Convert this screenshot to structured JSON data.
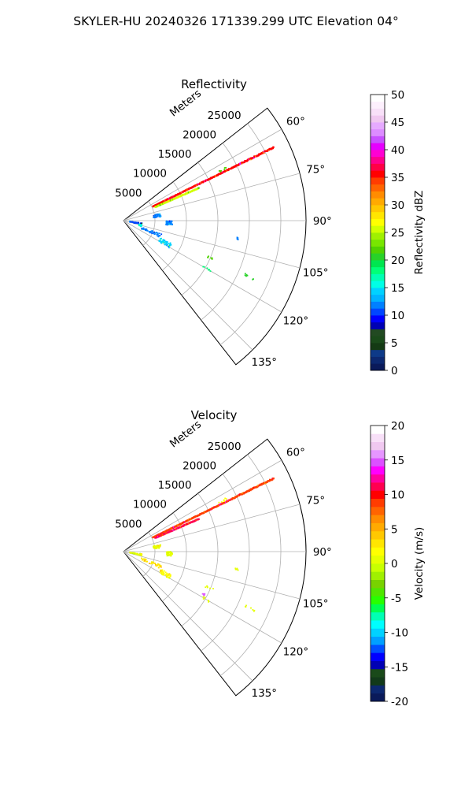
{
  "figure": {
    "title": "SKYLER-HU  20240326  171339.299 UTC Elevation 04°"
  },
  "chart_data": [
    {
      "type": "polar-sector",
      "title": "Reflectivity",
      "range_label": "Meters",
      "r_max": 29000,
      "r_ticks": [
        5000,
        10000,
        15000,
        20000,
        25000
      ],
      "theta_range_deg": [
        52,
        142
      ],
      "theta_ticks_deg": [
        60,
        75,
        90,
        105,
        120,
        135
      ],
      "grid": true,
      "colorbar": {
        "label": "Reflectivity dBZ",
        "vmin": 0,
        "vmax": 50,
        "ticks": [
          0,
          5,
          10,
          15,
          20,
          25,
          30,
          35,
          40,
          45,
          50
        ],
        "colors": [
          "#0a1a5a",
          "#0c2870",
          "#0e3a88",
          "#143a14",
          "#1a4a1a",
          "#224a22",
          "#0000b4",
          "#0000ff",
          "#0046ff",
          "#0080ff",
          "#00b4ff",
          "#00d2ff",
          "#00ffe6",
          "#00ffb4",
          "#00ff78",
          "#00e650",
          "#28d228",
          "#50d200",
          "#78e600",
          "#a0f000",
          "#d2ff00",
          "#ffff00",
          "#ffe600",
          "#ffc800",
          "#ffaa00",
          "#ff8c00",
          "#ff6400",
          "#ff3c00",
          "#ff0000",
          "#ff0046",
          "#ff008c",
          "#ff00d2",
          "#e600ff",
          "#c850ff",
          "#dc8cff",
          "#e6aaff",
          "#f0c8f0",
          "#f8e0f8",
          "#fdf0fd",
          "#ffffff"
        ]
      },
      "echoes": [
        {
          "theta": 64,
          "r0": 5200,
          "r1": 26500,
          "value": 36,
          "kind": "line"
        },
        {
          "theta": 66.5,
          "r0": 5500,
          "r1": 13000,
          "value": 26,
          "kind": "line"
        },
        {
          "theta": 63,
          "r0": 17000,
          "r1": 18500,
          "value": 22,
          "kind": "points"
        },
        {
          "theta": 82,
          "r0": 4800,
          "r1": 6000,
          "value": 12,
          "kind": "cluster"
        },
        {
          "theta": 93,
          "r0": 6800,
          "r1": 7800,
          "value": 12,
          "kind": "cluster"
        },
        {
          "theta": 112,
          "r0": 3000,
          "r1": 6500,
          "value": 12,
          "kind": "cluster"
        },
        {
          "theta": 100,
          "r0": 1000,
          "r1": 3000,
          "value": 11,
          "kind": "cluster"
        },
        {
          "theta": 106,
          "r0": 2600,
          "r1": 3000,
          "value": 16,
          "kind": "cluster"
        },
        {
          "theta": 118,
          "r0": 6500,
          "r1": 8500,
          "value": 14,
          "kind": "cluster"
        },
        {
          "theta": 99,
          "r0": 18000,
          "r1": 18500,
          "value": 12,
          "kind": "points"
        },
        {
          "theta": 113,
          "r0": 14000,
          "r1": 15500,
          "value": 22,
          "kind": "points"
        },
        {
          "theta": 114,
          "r0": 21000,
          "r1": 23000,
          "value": 20,
          "kind": "points"
        },
        {
          "theta": 120,
          "r0": 14500,
          "r1": 16000,
          "value": 18,
          "kind": "points"
        }
      ]
    },
    {
      "type": "polar-sector",
      "title": "Velocity",
      "range_label": "Meters",
      "r_max": 29000,
      "r_ticks": [
        5000,
        10000,
        15000,
        20000,
        25000
      ],
      "theta_range_deg": [
        52,
        142
      ],
      "theta_ticks_deg": [
        60,
        75,
        90,
        105,
        120,
        135
      ],
      "grid": true,
      "colorbar": {
        "label": "Velocity (m/s)",
        "vmin": -20,
        "vmax": 20,
        "ticks": [
          -20,
          -15,
          -10,
          -5,
          0,
          5,
          10,
          15,
          20
        ],
        "colors": [
          "#0a1a5a",
          "#0c2870",
          "#123a1a",
          "#1a4a1a",
          "#0000b4",
          "#0000ff",
          "#0050ff",
          "#00a0ff",
          "#00d2ff",
          "#00ffff",
          "#00ffb4",
          "#00ff50",
          "#28ff00",
          "#50e600",
          "#78d200",
          "#a0f000",
          "#c8ff00",
          "#e6ff00",
          "#ffff00",
          "#ffe600",
          "#ffc800",
          "#ffaa00",
          "#ff8c00",
          "#ff6400",
          "#ff3c00",
          "#ff0000",
          "#ff0050",
          "#ff00a0",
          "#ff00ff",
          "#dc50ff",
          "#e696ff",
          "#f0c8f0",
          "#f8e0f8",
          "#ffffff"
        ]
      },
      "echoes": [
        {
          "theta": 64,
          "r0": 5200,
          "r1": 26500,
          "value": 9,
          "kind": "line"
        },
        {
          "theta": 66.5,
          "r0": 5500,
          "r1": 13000,
          "value": 11,
          "kind": "line"
        },
        {
          "theta": 63,
          "r0": 17000,
          "r1": 18500,
          "value": 2,
          "kind": "points"
        },
        {
          "theta": 82,
          "r0": 4800,
          "r1": 6000,
          "value": 1,
          "kind": "cluster"
        },
        {
          "theta": 93,
          "r0": 6800,
          "r1": 7800,
          "value": 1,
          "kind": "cluster"
        },
        {
          "theta": 112,
          "r0": 3000,
          "r1": 6500,
          "value": 3,
          "kind": "cluster"
        },
        {
          "theta": 100,
          "r0": 1000,
          "r1": 3000,
          "value": 0,
          "kind": "cluster"
        },
        {
          "theta": 118,
          "r0": 6500,
          "r1": 8500,
          "value": 2,
          "kind": "cluster"
        },
        {
          "theta": 99,
          "r0": 18000,
          "r1": 18500,
          "value": 1,
          "kind": "points"
        },
        {
          "theta": 113,
          "r0": 14000,
          "r1": 15500,
          "value": 1,
          "kind": "points"
        },
        {
          "theta": 114,
          "r0": 21000,
          "r1": 23000,
          "value": 1,
          "kind": "points"
        },
        {
          "theta": 118,
          "r0": 14200,
          "r1": 14600,
          "value": 15,
          "kind": "points"
        },
        {
          "theta": 120,
          "r0": 14500,
          "r1": 16000,
          "value": 1,
          "kind": "points"
        }
      ]
    }
  ]
}
